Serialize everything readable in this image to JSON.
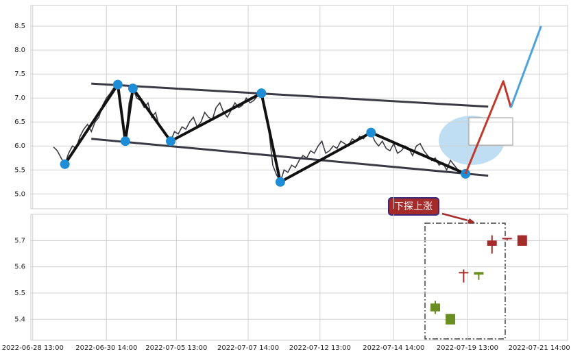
{
  "chart_data": [
    {
      "type": "line",
      "grid": true,
      "xlim": [
        -6,
        136
      ],
      "ylim": [
        4.69,
        8.93
      ],
      "yticks": [
        {
          "value": 5,
          "label": "5.0"
        },
        5.5,
        {
          "value": 6,
          "label": "6.0"
        },
        6.5,
        {
          "value": 7,
          "label": "7.0"
        },
        7.5,
        {
          "value": 8,
          "label": "8.0"
        },
        8.5
      ],
      "color": "#3a3a44",
      "values": [
        5.98,
        5.9,
        5.75,
        5.62,
        5.85,
        6.0,
        5.95,
        6.2,
        6.35,
        6.45,
        6.3,
        6.5,
        6.6,
        6.85,
        7.0,
        7.1,
        7.22,
        7.28,
        6.6,
        6.1,
        6.9,
        7.2,
        7.0,
        6.95,
        6.8,
        6.9,
        6.6,
        6.7,
        6.4,
        6.3,
        6.2,
        6.1,
        6.3,
        6.25,
        6.4,
        6.35,
        6.5,
        6.6,
        6.4,
        6.5,
        6.7,
        6.6,
        6.55,
        6.8,
        6.9,
        6.7,
        6.6,
        6.75,
        6.9,
        6.8,
        6.85,
        7.0,
        6.9,
        6.95,
        7.05,
        7.1,
        6.7,
        6.3,
        5.6,
        5.4,
        5.25,
        5.5,
        5.45,
        5.6,
        5.55,
        5.7,
        5.8,
        5.75,
        5.9,
        5.85,
        6.0,
        6.1,
        5.85,
        5.9,
        6.0,
        5.95,
        6.1,
        6.05,
        6.0,
        6.15,
        6.1,
        6.2,
        6.15,
        6.25,
        6.28,
        6.1,
        6.0,
        6.1,
        5.95,
        5.9,
        6.05,
        5.85,
        5.9,
        6.0,
        5.95,
        5.8,
        6.0,
        6.05,
        5.9,
        5.8,
        5.7,
        5.75,
        5.6,
        5.65,
        5.5,
        5.7,
        5.6,
        5.5,
        5.45,
        5.42
      ],
      "series": [
        {
          "color": "#3a3a44",
          "x": [
            10,
            115
          ],
          "values": [
            7.3,
            6.82
          ]
        },
        {
          "color": "#3a3a44",
          "x": [
            10,
            115
          ],
          "values": [
            6.15,
            5.38
          ]
        },
        {
          "color": "#111111",
          "x": [
            3,
            17,
            19,
            21,
            31,
            55,
            60,
            84,
            109
          ],
          "values": [
            5.62,
            7.28,
            6.1,
            7.2,
            6.1,
            7.1,
            5.25,
            6.28,
            5.42
          ],
          "markers": true,
          "marker_color": "#1f8dd6"
        },
        {
          "color": "#c0392b",
          "x": [
            109,
            119,
            121
          ],
          "values": [
            5.42,
            7.35,
            6.8
          ]
        },
        {
          "color": "#4aa3df",
          "x": [
            121,
            129
          ],
          "values": [
            6.8,
            8.5
          ]
        }
      ]
    },
    {
      "type": "candlestick",
      "grid": true,
      "xlim": [
        -6,
        136
      ],
      "ylim": [
        5.32,
        5.8
      ],
      "yticks": [
        5.4,
        5.5,
        5.6,
        5.7
      ],
      "xticks": [
        {
          "value": -5.5,
          "label": "2022-06-28 13:00"
        },
        {
          "value": 14,
          "label": "2022-06-30 14:00"
        },
        {
          "value": 32.5,
          "label": "2022-07-05 13:00"
        },
        {
          "value": 51.5,
          "label": "2022-07-07 14:00"
        },
        {
          "value": 70.5,
          "label": "2022-07-12 13:00"
        },
        {
          "value": 90,
          "label": "2022-07-14 14:00"
        },
        {
          "value": 109.5,
          "label": "2022-07-19 13:00"
        },
        {
          "value": 128.5,
          "label": "2022-07-21 14:00"
        }
      ],
      "up_color": "#a52a2a",
      "down_color": "#6b8e23",
      "annotation": "下探上涨",
      "x": [
        101,
        105,
        108.5,
        112.5,
        116,
        120,
        124
      ],
      "open": [
        5.46,
        5.42,
        5.58,
        5.58,
        5.68,
        5.705,
        5.68
      ],
      "high": [
        5.47,
        5.42,
        5.59,
        5.58,
        5.72,
        5.71,
        5.72
      ],
      "low": [
        5.42,
        5.38,
        5.54,
        5.55,
        5.65,
        5.7,
        5.68
      ],
      "close": [
        5.43,
        5.38,
        5.58,
        5.57,
        5.7,
        5.71,
        5.72
      ]
    }
  ]
}
